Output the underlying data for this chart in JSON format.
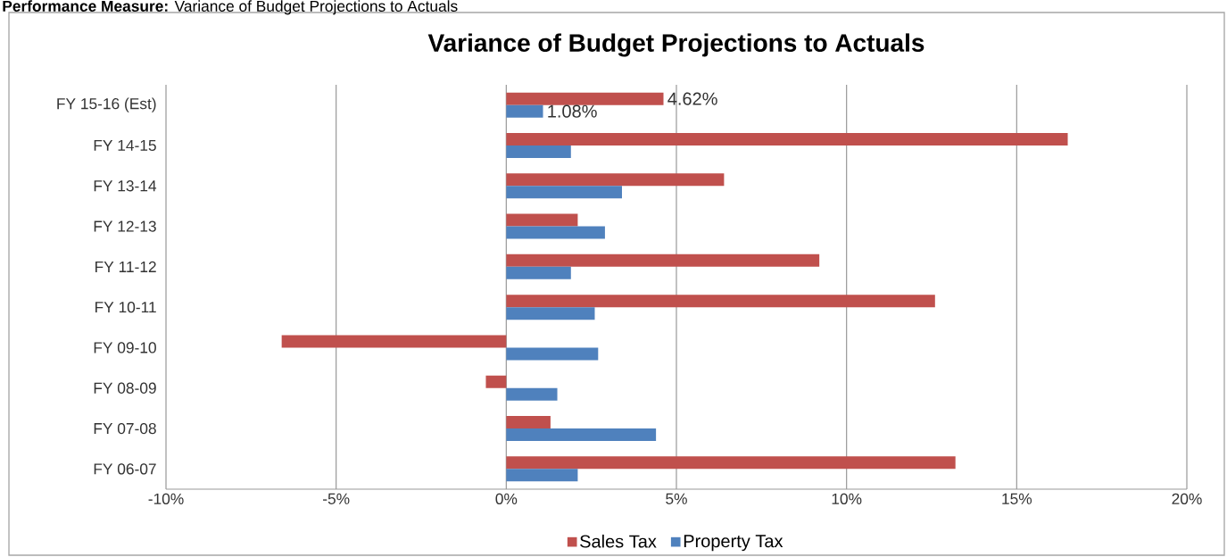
{
  "chart_data": {
    "type": "bar",
    "orientation": "horizontal",
    "title": "Variance of Budget Projections to Actuals",
    "annotations": [
      "**Performance Measure:** Variance of Budget Projections to Actuals"
    ],
    "categories": [
      "FY 15-16 (Est)",
      "FY 14-15",
      "FY 13-14",
      "FY 12-13",
      "FY 11-12",
      "FY 10-11",
      "FY 09-10",
      "FY 08-09",
      "FY 07-08",
      "FY 06-07"
    ],
    "series": [
      {
        "name": "Sales Tax",
        "color": "#c0504d",
        "values": [
          4.62,
          16.5,
          6.4,
          2.1,
          9.2,
          12.6,
          -6.6,
          -0.6,
          1.3,
          13.2
        ],
        "value_labels": [
          "4.62%",
          null,
          null,
          null,
          null,
          null,
          null,
          null,
          null,
          null
        ]
      },
      {
        "name": "Property Tax",
        "color": "#4f81bd",
        "values": [
          1.08,
          1.9,
          3.4,
          2.9,
          1.9,
          2.6,
          2.7,
          1.5,
          4.4,
          2.1
        ],
        "value_labels": [
          "1.08%",
          null,
          null,
          null,
          null,
          null,
          null,
          null,
          null,
          null
        ]
      }
    ],
    "xlim": [
      -10,
      20
    ],
    "xticks": [
      {
        "value": -10,
        "label": "-10%"
      },
      {
        "value": -5,
        "label": "-5%"
      },
      {
        "value": 0,
        "label": "0%"
      },
      {
        "value": 5,
        "label": "5%"
      },
      {
        "value": 10,
        "label": "10%"
      },
      {
        "value": 15,
        "label": "15%"
      },
      {
        "value": 20,
        "label": "20%"
      }
    ],
    "grid": "x",
    "legend": "bottom"
  }
}
